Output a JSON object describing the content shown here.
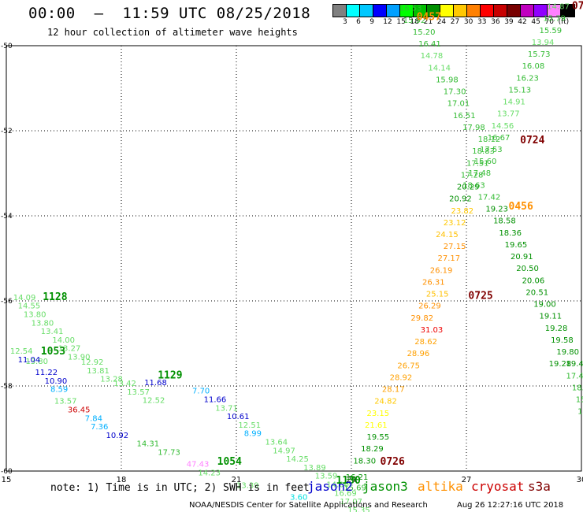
{
  "title": "00:00  —  11:59 UTC 08/25/2018",
  "subtitle": "12 hour collection of altimeter wave heights",
  "colorbar": {
    "colors": [
      "#808080",
      "#00ffff",
      "#00c8ff",
      "#0000ff",
      "#00a0ff",
      "#00ff00",
      "#00c000",
      "#009000",
      "#ffff00",
      "#ffc800",
      "#ff8000",
      "#ff0000",
      "#c80000",
      "#780000",
      "#c000c0",
      "#9000ff",
      "#ff80ff",
      "#000000"
    ],
    "labels": [
      "3",
      "6",
      "9",
      "12",
      "15",
      "18",
      "21",
      "24",
      "27",
      "30",
      "33",
      "36",
      "39",
      "42",
      "45",
      "70",
      "(ft)"
    ]
  },
  "note": "note: 1) Time is in UTC; 2) SWH is in feet",
  "satellites": [
    {
      "name": "jason2",
      "color": "#0000cc"
    },
    {
      "name": "jason3",
      "color": "#009000"
    },
    {
      "name": "altika",
      "color": "#ff9000"
    },
    {
      "name": "cryosat",
      "color": "#cc0000"
    },
    {
      "name": "s3a",
      "color": "#800000"
    }
  ],
  "footer": "NOAA/NESDIS Center for Satellite Applications and Research",
  "credit": "Aug 26 12:27:16 UTC 2018",
  "chart_data": {
    "type": "scatter",
    "xlim": [
      15,
      30
    ],
    "ylim": [
      -60,
      -50
    ],
    "xticks": [
      "15",
      "18",
      "21",
      "24",
      "27",
      "30"
    ],
    "yticks": [
      "-50",
      "-52",
      "-54",
      "-56",
      "-58",
      "-60"
    ],
    "grid": true,
    "points": [
      {
        "x": 15.18,
        "y": -55.98,
        "v": "14.09",
        "c": "#66dd66"
      },
      {
        "x": 15.3,
        "y": -56.18,
        "v": "14.55",
        "c": "#66dd66"
      },
      {
        "x": 15.45,
        "y": -56.38,
        "v": "13.80",
        "c": "#66dd66"
      },
      {
        "x": 15.65,
        "y": -56.58,
        "v": "13.80",
        "c": "#66dd66"
      },
      {
        "x": 15.9,
        "y": -56.78,
        "v": "13.41",
        "c": "#66dd66"
      },
      {
        "x": 16.2,
        "y": -56.98,
        "v": "14.00",
        "c": "#66dd66"
      },
      {
        "x": 16.35,
        "y": -57.18,
        "v": "13.27",
        "c": "#66dd66"
      },
      {
        "x": 16.6,
        "y": -57.38,
        "v": "13.90",
        "c": "#66dd66"
      },
      {
        "x": 16.95,
        "y": -57.5,
        "v": "12.92",
        "c": "#66dd66"
      },
      {
        "x": 17.1,
        "y": -57.7,
        "v": "13.81",
        "c": "#66dd66"
      },
      {
        "x": 17.45,
        "y": -57.9,
        "v": "13.28",
        "c": "#66dd66"
      },
      {
        "x": 17.8,
        "y": -58.0,
        "v": "13.42",
        "c": "#66dd66"
      },
      {
        "x": 18.15,
        "y": -58.2,
        "v": "13.57",
        "c": "#66dd66"
      },
      {
        "x": 18.55,
        "y": -58.4,
        "v": "12.52",
        "c": "#66dd66"
      },
      {
        "x": 15.1,
        "y": -57.24,
        "v": "12.54",
        "c": "#66dd66"
      },
      {
        "x": 15.5,
        "y": -57.48,
        "v": "13.80",
        "c": "#66dd66"
      },
      {
        "x": 15.3,
        "y": -57.44,
        "v": "11.04",
        "c": "#0000cc"
      },
      {
        "x": 15.75,
        "y": -57.74,
        "v": "11.22",
        "c": "#0000cc"
      },
      {
        "x": 16.0,
        "y": -57.94,
        "v": "10.90",
        "c": "#0000cc"
      },
      {
        "x": 16.15,
        "y": -58.14,
        "v": "8.59",
        "c": "#00b0ff"
      },
      {
        "x": 16.25,
        "y": -58.42,
        "v": "13.57",
        "c": "#66dd66"
      },
      {
        "x": 16.6,
        "y": -58.62,
        "v": "36.45",
        "c": "#cc0000"
      },
      {
        "x": 17.05,
        "y": -58.82,
        "v": "7.84",
        "c": "#00b0ff"
      },
      {
        "x": 17.2,
        "y": -59.02,
        "v": "7.36",
        "c": "#00b0ff"
      },
      {
        "x": 17.6,
        "y": -59.22,
        "v": "10.92",
        "c": "#0000cc"
      },
      {
        "x": 18.4,
        "y": -59.42,
        "v": "14.31",
        "c": "#33bb33"
      },
      {
        "x": 18.95,
        "y": -59.62,
        "v": "17.73",
        "c": "#33bb33"
      },
      {
        "x": 18.6,
        "y": -57.98,
        "v": "11.68",
        "c": "#0000cc"
      },
      {
        "x": 19.85,
        "y": -58.18,
        "v": "7.70",
        "c": "#00b0ff"
      },
      {
        "x": 20.15,
        "y": -58.38,
        "v": "11.66",
        "c": "#0000cc"
      },
      {
        "x": 20.45,
        "y": -58.58,
        "v": "13.71",
        "c": "#66dd66"
      },
      {
        "x": 20.75,
        "y": -58.78,
        "v": "10.61",
        "c": "#0000cc"
      },
      {
        "x": 21.05,
        "y": -58.98,
        "v": "12.51",
        "c": "#66dd66"
      },
      {
        "x": 21.2,
        "y": -59.18,
        "v": "8.99",
        "c": "#00b0ff"
      },
      {
        "x": 21.75,
        "y": -59.38,
        "v": "13.64",
        "c": "#66dd66"
      },
      {
        "x": 21.95,
        "y": -59.58,
        "v": "14.97",
        "c": "#66dd66"
      },
      {
        "x": 22.3,
        "y": -59.78,
        "v": "14.25",
        "c": "#66dd66"
      },
      {
        "x": 22.75,
        "y": -59.98,
        "v": "13.89",
        "c": "#66dd66"
      },
      {
        "x": 23.05,
        "y": -60.18,
        "v": "13.59",
        "c": "#66dd66"
      },
      {
        "x": 23.35,
        "y": -60.38,
        "v": "14.00",
        "c": "#66dd66"
      },
      {
        "x": 23.55,
        "y": -60.58,
        "v": "16.69",
        "c": "#66dd66"
      },
      {
        "x": 19.7,
        "y": -59.9,
        "v": "47.43",
        "c": "#ff80ff"
      },
      {
        "x": 20.0,
        "y": -60.1,
        "v": "14.23",
        "c": "#66dd66"
      },
      {
        "x": 21.0,
        "y": -60.4,
        "v": "13.39",
        "c": "#66dd66"
      },
      {
        "x": 22.4,
        "y": -60.68,
        "v": "3.60",
        "c": "#00e0e0"
      },
      {
        "x": 23.7,
        "y": -60.78,
        "v": "17.07",
        "c": "#66dd66"
      },
      {
        "x": 23.9,
        "y": -60.98,
        "v": "15.35",
        "c": "#66dd66"
      },
      {
        "x": 23.8,
        "y": -60.45,
        "v": "15.69",
        "c": "#33bb33"
      },
      {
        "x": 23.85,
        "y": -60.2,
        "v": "16.21",
        "c": "#009000"
      },
      {
        "x": 24.05,
        "y": -59.82,
        "v": "18.30",
        "c": "#009000"
      },
      {
        "x": 24.25,
        "y": -59.54,
        "v": "18.29",
        "c": "#009000"
      },
      {
        "x": 24.4,
        "y": -59.26,
        "v": "19.55",
        "c": "#009000"
      },
      {
        "x": 24.35,
        "y": -58.98,
        "v": "21.61",
        "c": "#ffff00"
      },
      {
        "x": 24.4,
        "y": -58.7,
        "v": "23.15",
        "c": "#ffff00"
      },
      {
        "x": 24.6,
        "y": -58.42,
        "v": "24.82",
        "c": "#ffc800"
      },
      {
        "x": 24.8,
        "y": -58.14,
        "v": "28.17",
        "c": "#ffa000"
      },
      {
        "x": 25.0,
        "y": -57.86,
        "v": "28.92",
        "c": "#ffa000"
      },
      {
        "x": 25.2,
        "y": -57.58,
        "v": "26.75",
        "c": "#ffa000"
      },
      {
        "x": 25.45,
        "y": -57.3,
        "v": "28.96",
        "c": "#ffa000"
      },
      {
        "x": 25.65,
        "y": -57.02,
        "v": "28.62",
        "c": "#ffa000"
      },
      {
        "x": 25.8,
        "y": -56.74,
        "v": "31.03",
        "c": "#ee0000"
      },
      {
        "x": 25.55,
        "y": -56.46,
        "v": "29.82",
        "c": "#ff9000"
      },
      {
        "x": 25.75,
        "y": -56.18,
        "v": "26.29",
        "c": "#ff9000"
      },
      {
        "x": 25.95,
        "y": -55.9,
        "v": "25.15",
        "c": "#ffc000"
      },
      {
        "x": 25.85,
        "y": -55.62,
        "v": "26.31",
        "c": "#ff9000"
      },
      {
        "x": 26.05,
        "y": -55.34,
        "v": "26.19",
        "c": "#ff9000"
      },
      {
        "x": 26.25,
        "y": -55.06,
        "v": "27.17",
        "c": "#ff9000"
      },
      {
        "x": 26.4,
        "y": -54.78,
        "v": "27.15",
        "c": "#ff9000"
      },
      {
        "x": 26.2,
        "y": -54.5,
        "v": "24.15",
        "c": "#ffc000"
      },
      {
        "x": 26.4,
        "y": -54.22,
        "v": "23.12",
        "c": "#ffc800"
      },
      {
        "x": 26.6,
        "y": -53.94,
        "v": "23.82",
        "c": "#ffc800"
      },
      {
        "x": 26.55,
        "y": -53.66,
        "v": "20.92",
        "c": "#009000"
      },
      {
        "x": 26.75,
        "y": -53.38,
        "v": "20.29",
        "c": "#009000"
      },
      {
        "x": 26.85,
        "y": -53.1,
        "v": "17.28",
        "c": "#33bb33"
      },
      {
        "x": 27.0,
        "y": -52.82,
        "v": "17.51",
        "c": "#33bb33"
      },
      {
        "x": 27.15,
        "y": -52.54,
        "v": "18.83",
        "c": "#33bb33"
      },
      {
        "x": 27.3,
        "y": -52.26,
        "v": "18.12",
        "c": "#33bb33"
      },
      {
        "x": 26.9,
        "y": -51.98,
        "v": "17.98",
        "c": "#33bb33"
      },
      {
        "x": 26.65,
        "y": -51.7,
        "v": "16.51",
        "c": "#33bb33"
      },
      {
        "x": 26.5,
        "y": -51.42,
        "v": "17.01",
        "c": "#33bb33"
      },
      {
        "x": 26.4,
        "y": -51.14,
        "v": "17.30",
        "c": "#33bb33"
      },
      {
        "x": 26.2,
        "y": -50.86,
        "v": "15.98",
        "c": "#33bb33"
      },
      {
        "x": 26.0,
        "y": -50.58,
        "v": "14.14",
        "c": "#66dd66"
      },
      {
        "x": 25.8,
        "y": -50.3,
        "v": "14.78",
        "c": "#66dd66"
      },
      {
        "x": 25.75,
        "y": -50.02,
        "v": "16.41",
        "c": "#33bb33"
      },
      {
        "x": 25.6,
        "y": -49.74,
        "v": "15.20",
        "c": "#33bb33"
      },
      {
        "x": 25.35,
        "y": -49.46,
        "v": "15.92",
        "c": "#33bb33"
      },
      {
        "x": 25.25,
        "y": -49.18,
        "v": "16.53",
        "c": "#33bb33"
      },
      {
        "x": 29.1,
        "y": -49.14,
        "v": "14.87",
        "c": "#66dd66"
      },
      {
        "x": 29.0,
        "y": -49.42,
        "v": "15.79",
        "c": "#33bb33"
      },
      {
        "x": 28.9,
        "y": -49.7,
        "v": "15.59",
        "c": "#33bb33"
      },
      {
        "x": 28.7,
        "y": -49.98,
        "v": "13.94",
        "c": "#66dd66"
      },
      {
        "x": 28.6,
        "y": -50.26,
        "v": "15.73",
        "c": "#33bb33"
      },
      {
        "x": 28.45,
        "y": -50.54,
        "v": "16.08",
        "c": "#33bb33"
      },
      {
        "x": 28.3,
        "y": -50.82,
        "v": "16.23",
        "c": "#33bb33"
      },
      {
        "x": 28.1,
        "y": -51.1,
        "v": "15.13",
        "c": "#33bb33"
      },
      {
        "x": 27.95,
        "y": -51.38,
        "v": "14.91",
        "c": "#66dd66"
      },
      {
        "x": 27.8,
        "y": -51.66,
        "v": "13.77",
        "c": "#66dd66"
      },
      {
        "x": 27.65,
        "y": -51.94,
        "v": "14.56",
        "c": "#66dd66"
      },
      {
        "x": 27.55,
        "y": -52.22,
        "v": "16.67",
        "c": "#33bb33"
      },
      {
        "x": 27.35,
        "y": -52.5,
        "v": "17.53",
        "c": "#33bb33"
      },
      {
        "x": 27.2,
        "y": -52.78,
        "v": "15.60",
        "c": "#33bb33"
      },
      {
        "x": 27.05,
        "y": -53.06,
        "v": "17.48",
        "c": "#33bb33"
      },
      {
        "x": 26.9,
        "y": -53.34,
        "v": "18.63",
        "c": "#33bb33"
      },
      {
        "x": 27.3,
        "y": -53.62,
        "v": "17.42",
        "c": "#33bb33"
      },
      {
        "x": 27.5,
        "y": -53.9,
        "v": "19.23",
        "c": "#009000"
      },
      {
        "x": 27.7,
        "y": -54.18,
        "v": "18.58",
        "c": "#009000"
      },
      {
        "x": 27.85,
        "y": -54.46,
        "v": "18.36",
        "c": "#009000"
      },
      {
        "x": 28.0,
        "y": -54.74,
        "v": "19.65",
        "c": "#009000"
      },
      {
        "x": 28.15,
        "y": -55.02,
        "v": "20.91",
        "c": "#009000"
      },
      {
        "x": 28.3,
        "y": -55.3,
        "v": "20.50",
        "c": "#009000"
      },
      {
        "x": 28.45,
        "y": -55.58,
        "v": "20.06",
        "c": "#009000"
      },
      {
        "x": 28.55,
        "y": -55.86,
        "v": "20.51",
        "c": "#009000"
      },
      {
        "x": 28.75,
        "y": -56.14,
        "v": "19.00",
        "c": "#009000"
      },
      {
        "x": 28.9,
        "y": -56.42,
        "v": "19.11",
        "c": "#009000"
      },
      {
        "x": 29.05,
        "y": -56.7,
        "v": "19.28",
        "c": "#009000"
      },
      {
        "x": 29.2,
        "y": -56.98,
        "v": "19.58",
        "c": "#009000"
      },
      {
        "x": 29.35,
        "y": -57.26,
        "v": "19.80",
        "c": "#009000"
      },
      {
        "x": 29.15,
        "y": -57.54,
        "v": "19.28",
        "c": "#009000"
      },
      {
        "x": 29.6,
        "y": -57.54,
        "v": "19.44",
        "c": "#009000"
      },
      {
        "x": 29.6,
        "y": -57.82,
        "v": "17.44",
        "c": "#33bb33"
      },
      {
        "x": 29.75,
        "y": -58.1,
        "v": "18.01",
        "c": "#33bb33"
      },
      {
        "x": 29.85,
        "y": -58.38,
        "v": "15.6",
        "c": "#33bb33"
      },
      {
        "x": 29.9,
        "y": -58.66,
        "v": "15.",
        "c": "#33bb33"
      }
    ],
    "labels": [
      {
        "x": 15.95,
        "y": -55.98,
        "v": "1128",
        "c": "#009000"
      },
      {
        "x": 15.9,
        "y": -57.26,
        "v": "1053",
        "c": "#009000"
      },
      {
        "x": 18.95,
        "y": -57.82,
        "v": "1129",
        "c": "#009000"
      },
      {
        "x": 20.5,
        "y": -59.85,
        "v": "1054",
        "c": "#009000"
      },
      {
        "x": 23.6,
        "y": -60.3,
        "v": "1130",
        "c": "#009000"
      },
      {
        "x": 25.7,
        "y": -49.4,
        "v": "0457",
        "c": "#ff9000"
      },
      {
        "x": 29.75,
        "y": -49.14,
        "v": "072",
        "c": "#800000"
      },
      {
        "x": 28.4,
        "y": -52.3,
        "v": "0724",
        "c": "#800000"
      },
      {
        "x": 28.1,
        "y": -53.85,
        "v": "0456",
        "c": "#ff9000"
      },
      {
        "x": 27.05,
        "y": -55.95,
        "v": "0725",
        "c": "#800000"
      },
      {
        "x": 24.75,
        "y": -59.85,
        "v": "0726",
        "c": "#800000"
      }
    ]
  }
}
